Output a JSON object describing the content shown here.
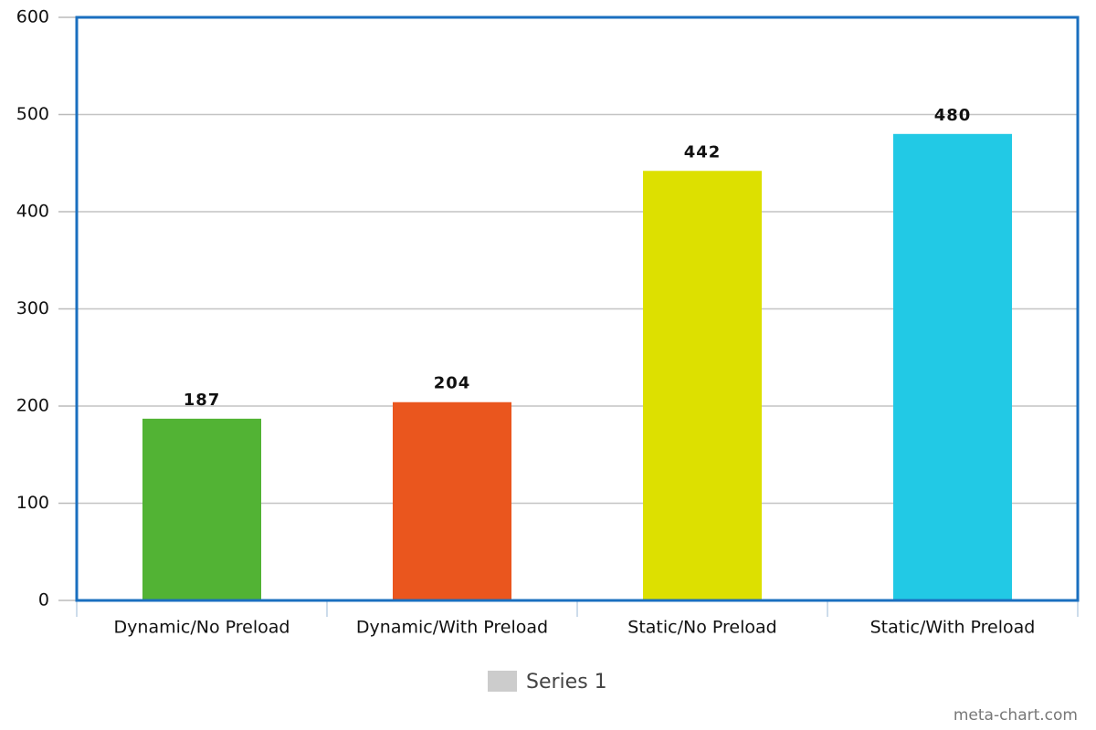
{
  "chart_data": {
    "type": "bar",
    "categories": [
      "Dynamic/No Preload",
      "Dynamic/With Preload",
      "Static/No Preload",
      "Static/With Preload"
    ],
    "series": [
      {
        "name": "Series 1",
        "color": "#cccccc",
        "values": [
          187,
          204,
          442,
          480
        ],
        "bar_colors": [
          "#52b334",
          "#ea561e",
          "#dde000",
          "#22c9e5"
        ]
      }
    ],
    "ylim": [
      0,
      600
    ],
    "yticks": [
      0,
      100,
      200,
      300,
      400,
      500,
      600
    ],
    "grid": true,
    "legend": "bottom"
  },
  "credit": "meta-chart.com"
}
